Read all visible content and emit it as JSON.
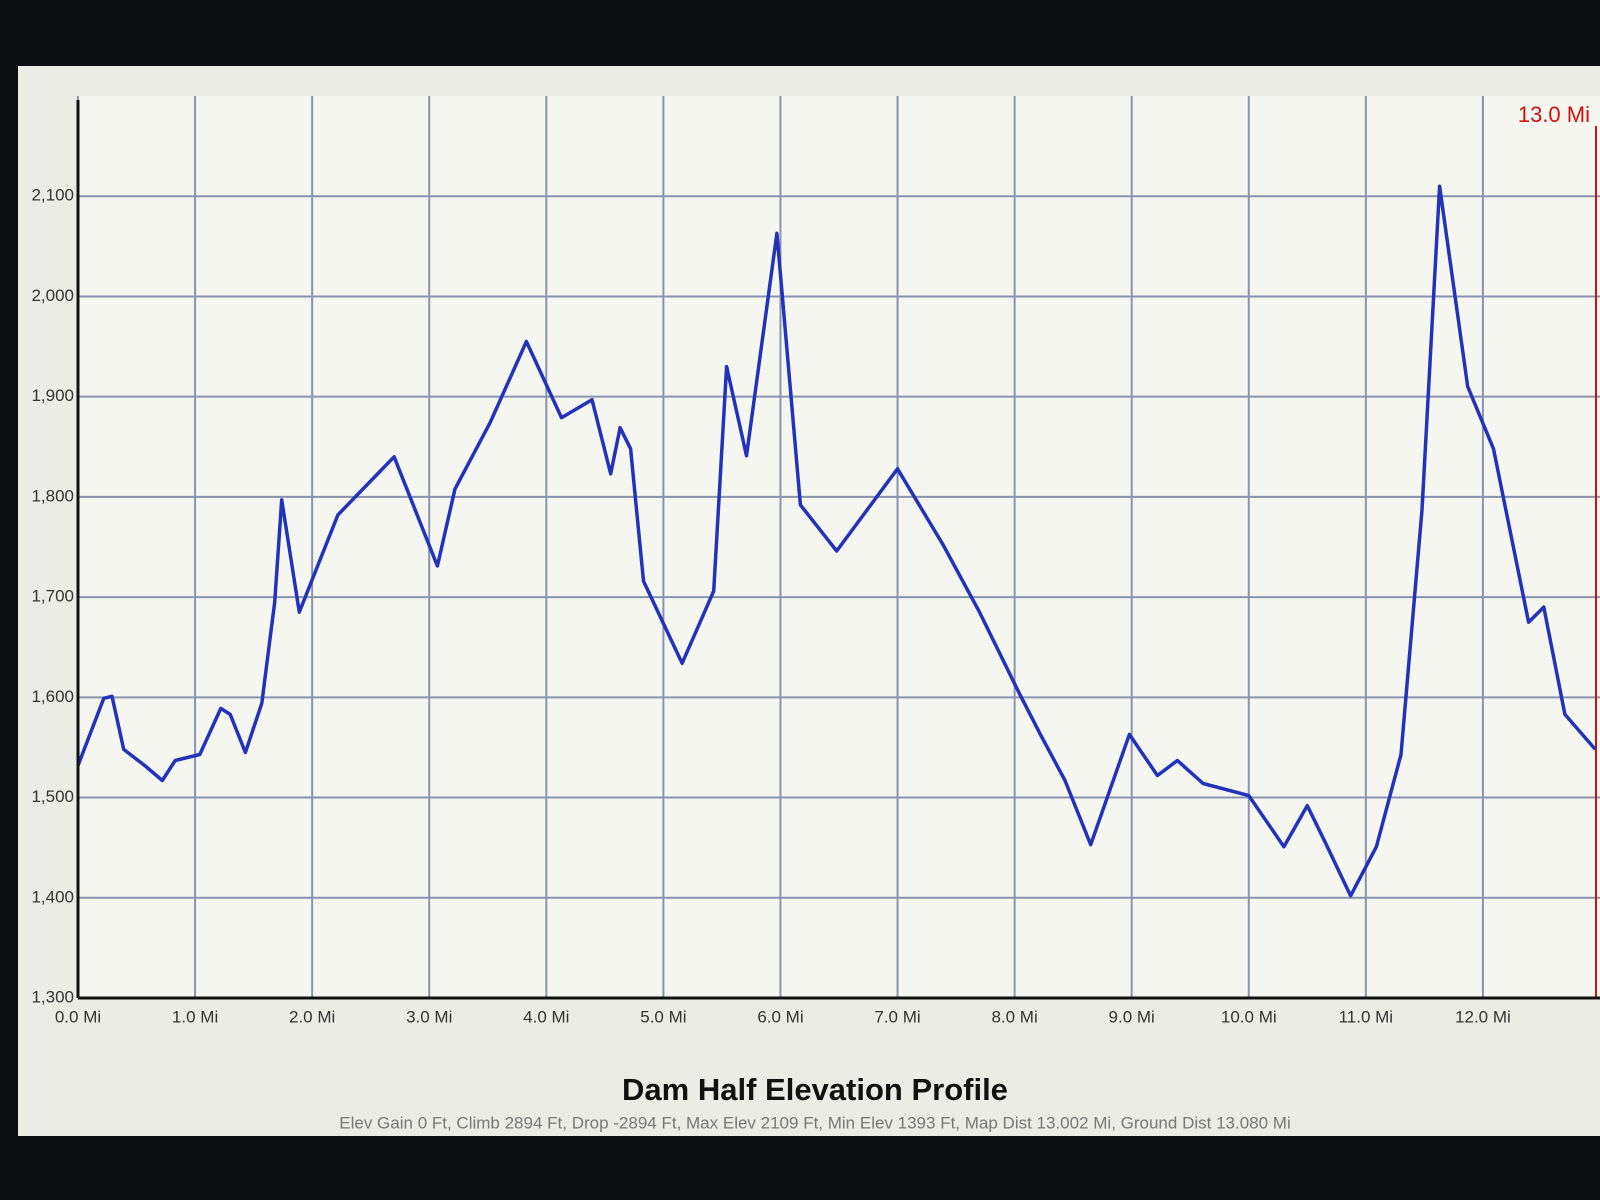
{
  "chart_data": {
    "type": "line",
    "title": "Dam Half Elevation Profile",
    "subtitle": "Elev Gain 0 Ft, Climb 2894 Ft, Drop -2894 Ft, Max Elev 2109 Ft, Min Elev 1393 Ft, Map Dist 13.002 Mi, Ground Dist 13.080 Mi",
    "marker": {
      "value": 13.0,
      "label": "13.0 Mi",
      "color": "#cc1111"
    },
    "x": [
      0,
      0.22,
      0.29,
      0.39,
      0.57,
      0.72,
      0.83,
      1.04,
      1.22,
      1.3,
      1.43,
      1.57,
      1.68,
      1.74,
      1.89,
      2.22,
      2.7,
      3.07,
      3.22,
      3.52,
      3.83,
      4.13,
      4.39,
      4.55,
      4.63,
      4.72,
      4.83,
      5.16,
      5.43,
      5.54,
      5.71,
      5.97,
      6.17,
      6.48,
      7.0,
      7.39,
      7.7,
      8.04,
      8.22,
      8.43,
      8.65,
      8.98,
      9.22,
      9.39,
      9.61,
      10.0,
      10.3,
      10.5,
      10.65,
      10.87,
      11.09,
      11.3,
      11.48,
      11.63,
      11.87,
      12.09,
      12.39,
      12.52,
      12.7,
      12.96
    ],
    "series": [
      {
        "name": "Elevation",
        "color": "#2233bb",
        "values": [
          1532,
          1599,
          1601,
          1548,
          1532,
          1517,
          1537,
          1543,
          1589,
          1583,
          1545,
          1594,
          1695,
          1797,
          1685,
          1782,
          1840,
          1731,
          1808,
          1874,
          1955,
          1879,
          1897,
          1823,
          1869,
          1848,
          1716,
          1634,
          1706,
          1930,
          1841,
          2063,
          1792,
          1746,
          1828,
          1752,
          1685,
          1604,
          1563,
          1517,
          1453,
          1563,
          1522,
          1537,
          1514,
          1502,
          1451,
          1492,
          1456,
          1402,
          1451,
          1543,
          1787,
          2110,
          1910,
          1848,
          1675,
          1690,
          1583,
          1548
        ]
      }
    ],
    "xlim": [
      0,
      13.0
    ],
    "ylim": [
      1300,
      2200
    ],
    "xticks": [
      {
        "value": 0,
        "label": "0.0 Mi"
      },
      {
        "value": 1,
        "label": "1.0 Mi"
      },
      {
        "value": 2,
        "label": "2.0 Mi"
      },
      {
        "value": 3,
        "label": "3.0 Mi"
      },
      {
        "value": 4,
        "label": "4.0 Mi"
      },
      {
        "value": 5,
        "label": "5.0 Mi"
      },
      {
        "value": 6,
        "label": "6.0 Mi"
      },
      {
        "value": 7,
        "label": "7.0 Mi"
      },
      {
        "value": 8,
        "label": "8.0 Mi"
      },
      {
        "value": 9,
        "label": "9.0 Mi"
      },
      {
        "value": 10,
        "label": "10.0 Mi"
      },
      {
        "value": 11,
        "label": "11.0 Mi"
      },
      {
        "value": 12,
        "label": "12.0 Mi"
      }
    ],
    "yticks": [
      {
        "value": 1300,
        "label": "1,300"
      },
      {
        "value": 1400,
        "label": "1,400"
      },
      {
        "value": 1500,
        "label": "1,500"
      },
      {
        "value": 1600,
        "label": "1,600"
      },
      {
        "value": 1700,
        "label": "1,700"
      },
      {
        "value": 1800,
        "label": "1,800"
      },
      {
        "value": 1900,
        "label": "1,900"
      },
      {
        "value": 2000,
        "label": "2,000"
      },
      {
        "value": 2100,
        "label": "2,100"
      }
    ],
    "grid": true
  }
}
